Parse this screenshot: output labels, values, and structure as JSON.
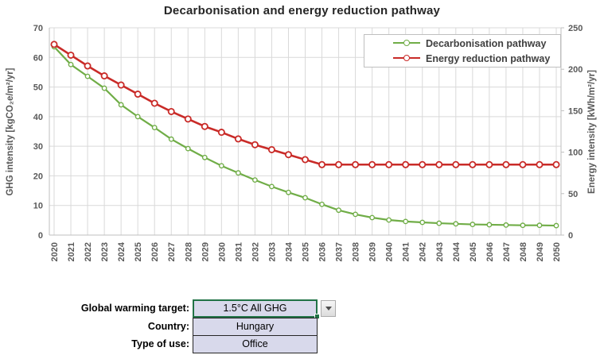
{
  "chart_data": {
    "type": "line",
    "title": "Decarbonisation and energy reduction pathway",
    "x": [
      2020,
      2021,
      2022,
      2023,
      2024,
      2025,
      2026,
      2027,
      2028,
      2029,
      2030,
      2031,
      2032,
      2033,
      2034,
      2035,
      2036,
      2037,
      2038,
      2039,
      2040,
      2041,
      2042,
      2043,
      2044,
      2045,
      2046,
      2047,
      2048,
      2049,
      2050
    ],
    "series": [
      {
        "name": "Decarbonisation pathway",
        "axis": "left",
        "color": "#70AD47",
        "values": [
          63.6,
          57.6,
          53.6,
          49.6,
          44.0,
          40.0,
          36.3,
          32.4,
          29.2,
          26.2,
          23.4,
          21.0,
          18.6,
          16.4,
          14.4,
          12.6,
          10.4,
          8.4,
          7.0,
          5.9,
          5.1,
          4.6,
          4.3,
          4.0,
          3.8,
          3.6,
          3.5,
          3.4,
          3.3,
          3.3,
          3.2
        ]
      },
      {
        "name": "Energy reduction pathway",
        "axis": "right",
        "color": "#C92B28",
        "values": [
          230,
          217,
          204,
          192,
          181,
          170,
          159,
          149,
          140,
          131,
          124,
          116,
          109,
          103,
          97,
          91,
          85,
          85,
          85,
          85,
          85,
          85,
          85,
          85,
          85,
          85,
          85,
          85,
          85,
          85,
          85
        ]
      }
    ],
    "left_axis": {
      "label": "GHG intensity [kgCO₂e/m²/yr]",
      "min": 0,
      "max": 70,
      "step": 10
    },
    "right_axis": {
      "label": "Energy intensity [kWh/m²/yr]",
      "min": 0,
      "max": 250,
      "step": 50
    },
    "grid": true,
    "legend_position": "top-right-inside",
    "x_tick_rotation": 90
  },
  "form": {
    "rows": [
      {
        "label": "Global warming target:",
        "value": "1.5°C All GHG",
        "type": "dropdown"
      },
      {
        "label": "Country:",
        "value": "Hungary",
        "type": "cell"
      },
      {
        "label": "Type of use:",
        "value": "Office",
        "type": "cell"
      }
    ]
  },
  "icons": {
    "dropdown_arrow": "chevron-down-icon"
  },
  "colors": {
    "decarbonisation": "#70AD47",
    "energy": "#C92B28",
    "grid": "#D9D9D9",
    "axis_line": "#BFBFBF",
    "tick_text": "#595959",
    "title_text": "#262626",
    "cell_fill": "#D8D9EB",
    "cell_border": "#262626",
    "selection_green": "#217346",
    "legend_border": "#BFBFBF"
  }
}
